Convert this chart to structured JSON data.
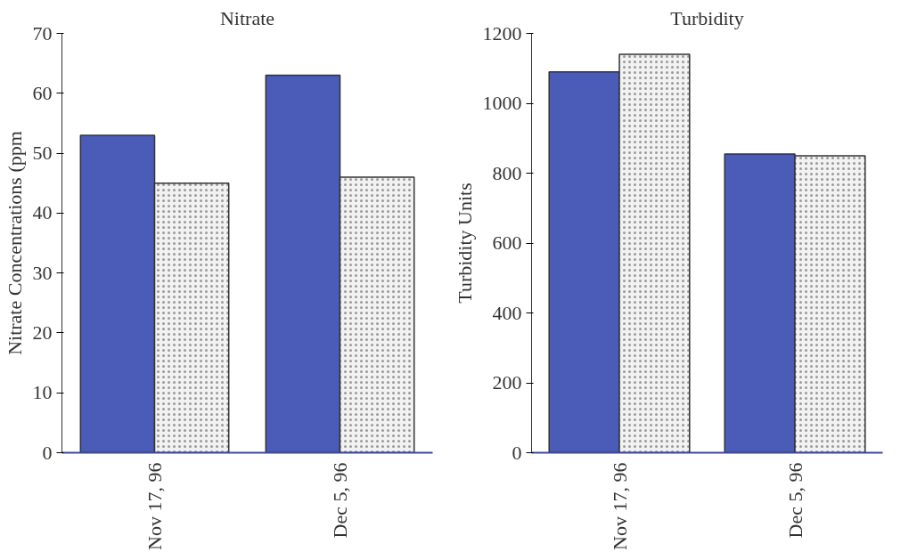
{
  "chart_data": [
    {
      "type": "bar",
      "title": "Nitrate",
      "ylabel": "Nitrate Concentrations (ppm",
      "categories": [
        "Nov 17, 96",
        "Dec 5, 96"
      ],
      "ylim": [
        0,
        70
      ],
      "yticks": [
        0,
        10,
        20,
        30,
        40,
        50,
        60,
        70
      ],
      "grid": false,
      "series": [
        {
          "color": "#4a5cb8",
          "values": [
            53,
            63
          ]
        },
        {
          "color": "#f2f2f2",
          "values": [
            45,
            46
          ]
        }
      ]
    },
    {
      "type": "bar",
      "title": "Turbidity",
      "ylabel": "Turbidity Units",
      "categories": [
        "Nov 17, 96",
        "Dec 5, 96"
      ],
      "ylim": [
        0,
        1200
      ],
      "yticks": [
        0,
        200,
        400,
        600,
        800,
        1000,
        1200
      ],
      "grid": false,
      "series": [
        {
          "color": "#4a5cb8",
          "values": [
            1090,
            855
          ]
        },
        {
          "color": "#f2f2f2",
          "values": [
            1140,
            850
          ]
        }
      ]
    }
  ]
}
